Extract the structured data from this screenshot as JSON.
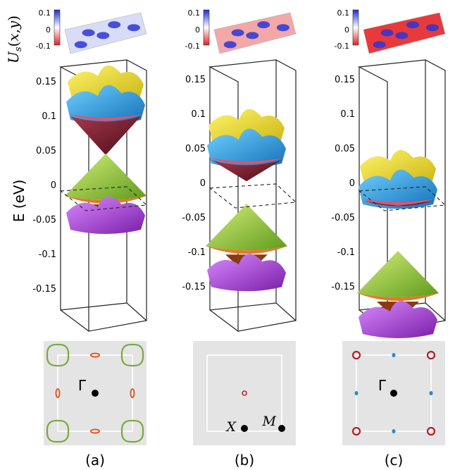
{
  "figure": {
    "y_axis_label": "E (eV)",
    "surface_label": "U_s(x,y)",
    "panels": [
      {
        "label": "(a)",
        "colorbar_ticks": [
          "0.1",
          "0",
          "-0.1"
        ],
        "energy_ticks": [
          "0.15",
          "0.1",
          "0.05",
          "0",
          "-0.05",
          "-0.1",
          "-0.15"
        ],
        "bz_points": [
          "Γ"
        ],
        "surface_tint": "#d8dcf6"
      },
      {
        "label": "(b)",
        "colorbar_ticks": [
          "0.1",
          "0",
          "-0.1"
        ],
        "energy_ticks": [
          "0.15",
          "0.1",
          "0.05",
          "0",
          "-0.05",
          "-0.1",
          "-0.15"
        ],
        "bz_points": [
          "X",
          "M"
        ],
        "surface_tint": "#f4a7a7"
      },
      {
        "label": "(c)",
        "colorbar_ticks": [
          "0.1",
          "0",
          "-0.1"
        ],
        "energy_ticks": [
          "0.15",
          "0.1",
          "0.05",
          "0",
          "-0.05",
          "-0.1",
          "-0.15"
        ],
        "bz_points": [
          "Γ"
        ],
        "surface_tint": "#e83a3a"
      }
    ],
    "colors": {
      "band_top": "#f2e42e",
      "band_cyan": "#2aa8e8",
      "band_cone": "#7a1a2a",
      "band_green": "#9ccc3a",
      "band_orange": "#e07a2a",
      "band_purple": "#a24ac8",
      "bz_bg": "#e4e4e4",
      "pocket_green": "#7aa83a",
      "pocket_orange": "#e0582a",
      "pocket_red": "#b0202a",
      "pocket_blue": "#2a88c8"
    }
  }
}
